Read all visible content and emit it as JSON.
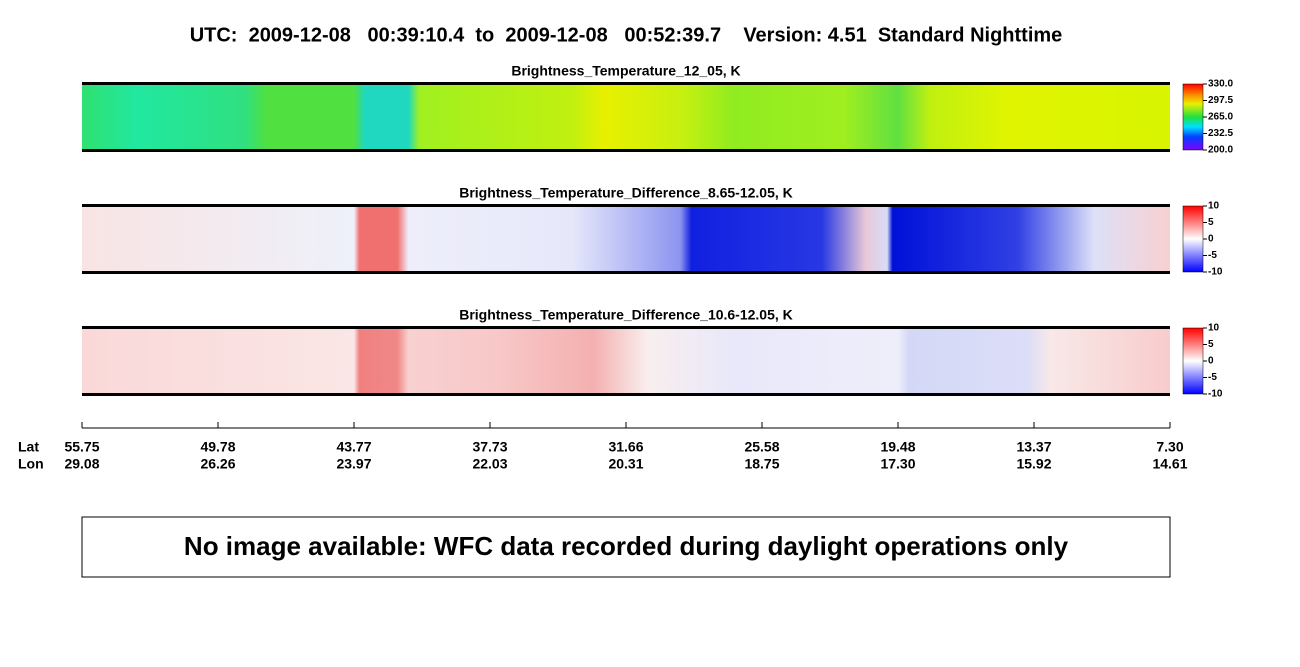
{
  "header": {
    "title": "UTC:  2009-12-08   00:39:10.4  to  2009-12-08   00:52:39.7    Version: 4.51  Standard Nighttime"
  },
  "panels": [
    {
      "title": "Brightness_Temperature_12_05, K",
      "colorbar_ticks": [
        "330.0",
        "297.5",
        "265.0",
        "232.5",
        "200.0"
      ]
    },
    {
      "title": "Brightness_Temperature_Difference_8.65-12.05, K",
      "colorbar_ticks": [
        "10",
        "5",
        "0",
        "-5",
        "-10"
      ]
    },
    {
      "title": "Brightness_Temperature_Difference_10.6-12.05, K",
      "colorbar_ticks": [
        "10",
        "5",
        "0",
        "-5",
        "-10"
      ]
    }
  ],
  "axis": {
    "lat_label": "Lat",
    "lon_label": "Lon",
    "lat": [
      "55.75",
      "49.78",
      "43.77",
      "37.73",
      "31.66",
      "25.58",
      "19.48",
      "13.37",
      "7.30"
    ],
    "lon": [
      "29.08",
      "26.26",
      "23.97",
      "22.03",
      "20.31",
      "18.75",
      "17.30",
      "15.92",
      "14.61"
    ]
  },
  "message": "No image available: WFC data recorded during daylight operations only"
}
